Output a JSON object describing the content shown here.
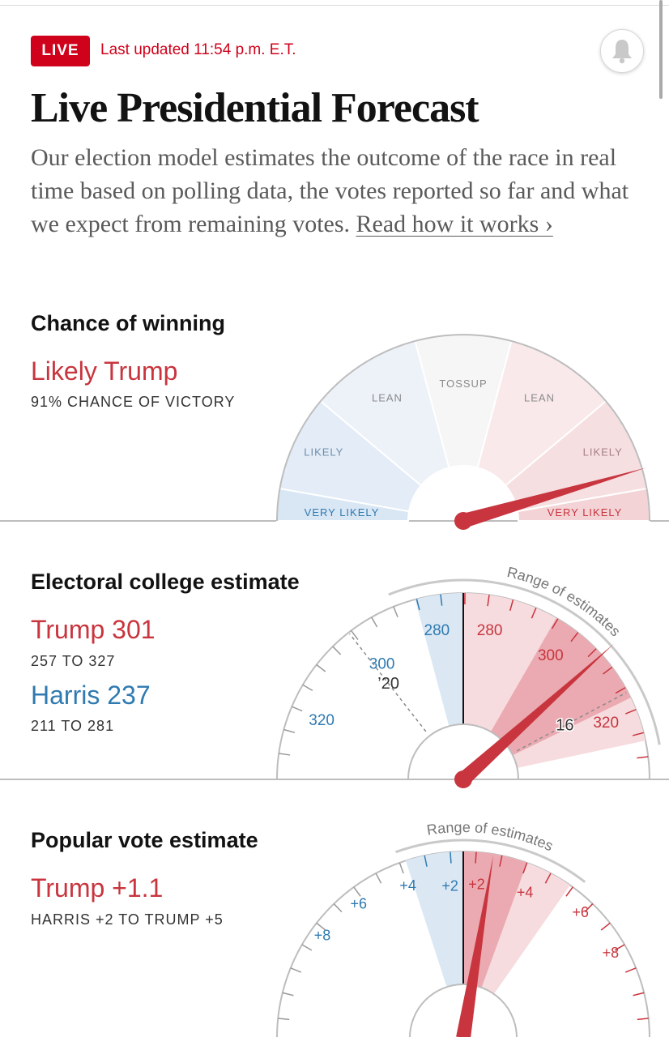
{
  "header": {
    "live_label": "LIVE",
    "last_updated": "Last updated 11:54 p.m. E.T.",
    "title": "Live Presidential Forecast",
    "description": "Our election model estimates the outcome of the race in real time based on polling data, the votes reported so far and what we expect from remaining votes.",
    "read_more_link": "Read how it works ›"
  },
  "colors": {
    "trump_red": "#c8353e",
    "harris_blue": "#2f7ab0",
    "live_red": "#d0021b"
  },
  "chance_of_winning": {
    "title": "Chance of winning",
    "headline": "Likely Trump",
    "sub": "91% CHANCE OF VICTORY",
    "probability": 0.91,
    "bands": [
      {
        "label": "VERY LIKELY",
        "side": "harris"
      },
      {
        "label": "LIKELY",
        "side": "harris"
      },
      {
        "label": "LEAN",
        "side": "harris"
      },
      {
        "label": "TOSSUP",
        "side": "neutral"
      },
      {
        "label": "LEAN",
        "side": "trump"
      },
      {
        "label": "LIKELY",
        "side": "trump"
      },
      {
        "label": "VERY LIKELY",
        "side": "trump"
      }
    ]
  },
  "electoral_college": {
    "title": "Electoral college estimate",
    "trump_headline": "Trump 301",
    "trump_range": "257 TO 327",
    "harris_headline": "Harris 237",
    "harris_range": "211 TO 281",
    "range_label": "Range of estimates",
    "marker_2020": "’20",
    "marker_2016": "16",
    "tick_labels": [
      {
        "text": "320",
        "side": "harris"
      },
      {
        "text": "300",
        "side": "harris"
      },
      {
        "text": "280",
        "side": "harris"
      },
      {
        "text": "280",
        "side": "trump"
      },
      {
        "text": "300",
        "side": "trump"
      },
      {
        "text": "320",
        "side": "trump"
      }
    ],
    "trump_estimate": 301
  },
  "popular_vote": {
    "title": "Popular vote estimate",
    "headline": "Trump +1.1",
    "range": "HARRIS +2 TO TRUMP +5",
    "range_label": "Range of estimates",
    "tick_labels": [
      {
        "text": "+8",
        "side": "harris"
      },
      {
        "text": "+6",
        "side": "harris"
      },
      {
        "text": "+4",
        "side": "harris"
      },
      {
        "text": "+2",
        "side": "harris"
      },
      {
        "text": "+2",
        "side": "trump"
      },
      {
        "text": "+4",
        "side": "trump"
      },
      {
        "text": "+6",
        "side": "trump"
      },
      {
        "text": "+8",
        "side": "trump"
      }
    ],
    "trump_margin": 1.1
  }
}
